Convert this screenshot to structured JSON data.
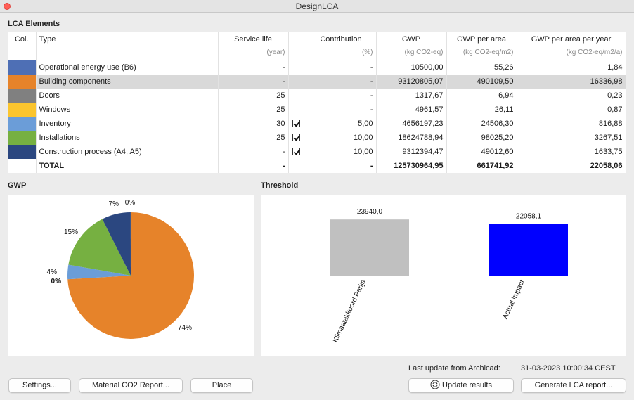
{
  "window": {
    "title": "DesignLCA"
  },
  "sections": {
    "elements_title": "LCA Elements",
    "gwp_title": "GWP",
    "threshold_title": "Threshold"
  },
  "table": {
    "headers": [
      "Col.",
      "Type",
      "Service life",
      "",
      "Contribution",
      "GWP",
      "GWP per area",
      "GWP per area per year"
    ],
    "units": [
      "",
      "",
      "(year)",
      "",
      "(%)",
      "(kg CO2-eq)",
      "(kg CO2-eq/m2)",
      "(kg CO2-eq/m2/a)"
    ],
    "rows": [
      {
        "color": "#4e6fb5",
        "type": "Operational energy use (B6)",
        "life": "-",
        "checked": false,
        "contribution": "-",
        "gwp": "10500,00",
        "gwp_area": "55,26",
        "gwp_area_year": "1,84",
        "selected": false
      },
      {
        "color": "#e6832a",
        "type": "Building components",
        "life": "-",
        "checked": false,
        "contribution": "-",
        "gwp": "93120805,07",
        "gwp_area": "490109,50",
        "gwp_area_year": "16336,98",
        "selected": true
      },
      {
        "color": "#808080",
        "type": "Doors",
        "life": "25",
        "checked": false,
        "contribution": "-",
        "gwp": "1317,67",
        "gwp_area": "6,94",
        "gwp_area_year": "0,23",
        "selected": false
      },
      {
        "color": "#fbc52e",
        "type": "Windows",
        "life": "25",
        "checked": false,
        "contribution": "-",
        "gwp": "4961,57",
        "gwp_area": "26,11",
        "gwp_area_year": "0,87",
        "selected": false
      },
      {
        "color": "#6b9dd8",
        "type": "Inventory",
        "life": "30",
        "checked": true,
        "contribution": "5,00",
        "gwp": "4656197,23",
        "gwp_area": "24506,30",
        "gwp_area_year": "816,88",
        "selected": false
      },
      {
        "color": "#76b041",
        "type": "Installations",
        "life": "25",
        "checked": true,
        "contribution": "10,00",
        "gwp": "18624788,94",
        "gwp_area": "98025,20",
        "gwp_area_year": "3267,51",
        "selected": false
      },
      {
        "color": "#2b4780",
        "type": "Construction process (A4, A5)",
        "life": "-",
        "checked": true,
        "contribution": "10,00",
        "gwp": "9312394,47",
        "gwp_area": "49012,60",
        "gwp_area_year": "1633,75",
        "selected": false
      }
    ],
    "total": {
      "type": "TOTAL",
      "life": "-",
      "contribution": "-",
      "gwp": "125730964,95",
      "gwp_area": "661741,92",
      "gwp_area_year": "22058,06"
    }
  },
  "chart_data": [
    {
      "type": "pie",
      "title": "GWP",
      "slices": [
        {
          "label": "74%",
          "value": 74.06,
          "color": "#e6832a"
        },
        {
          "label": "4%",
          "value": 3.7,
          "color": "#6b9dd8"
        },
        {
          "label": "15%",
          "value": 14.81,
          "color": "#76b041"
        },
        {
          "label": "7%",
          "value": 7.41,
          "color": "#2b4780"
        },
        {
          "label": "0%",
          "value": 0.0084,
          "color": "#4e6fb5"
        },
        {
          "label": "0%",
          "value": 0.0039,
          "color": "#fbc52e"
        },
        {
          "label": "0%",
          "value": 0.001,
          "color": "#808080"
        }
      ]
    },
    {
      "type": "bar",
      "title": "Threshold",
      "categories": [
        "Klimaatakkoord Parijs",
        "Actual impact"
      ],
      "values": [
        23940.0,
        22058.1
      ],
      "value_labels": [
        "23940,0",
        "22058,1"
      ],
      "colors": [
        "#c0c0c0",
        "#0000ff"
      ],
      "ylim": [
        0,
        31500
      ]
    }
  ],
  "status": {
    "label": "Last update from Archicad:",
    "timestamp": "31-03-2023 10:00:34 CEST"
  },
  "buttons": {
    "settings": "Settings...",
    "material_report": "Material CO2 Report...",
    "place": "Place",
    "update": "Update results",
    "generate": "Generate LCA report..."
  },
  "icons": {
    "update": "refresh-icon",
    "check": "checkmark-icon"
  }
}
